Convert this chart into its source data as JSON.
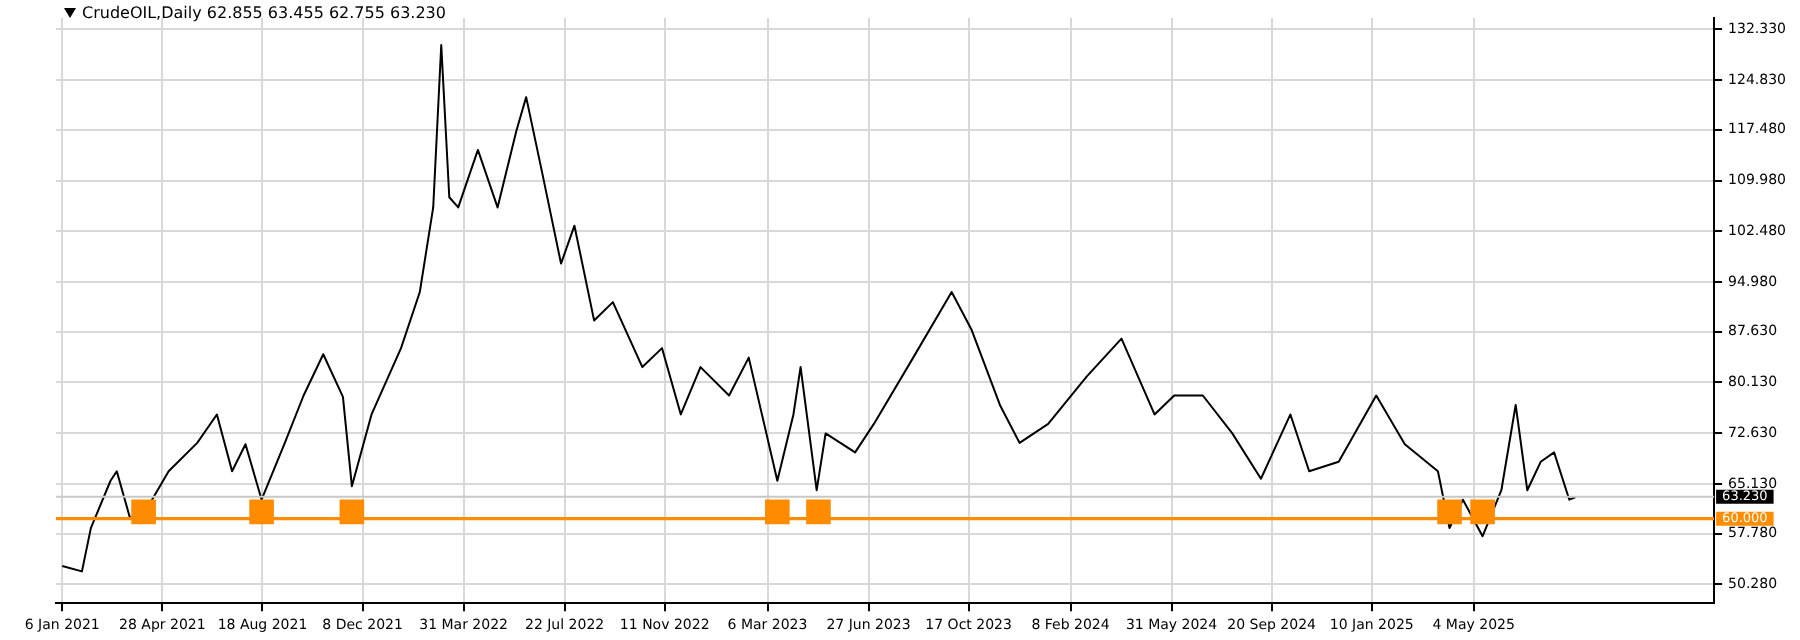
{
  "chart_data": {
    "type": "line",
    "title": "CrudeOIL,Daily  62.855 63.455 62.755 63.230",
    "xlim": [
      "2020-12-30",
      "2026-01-28"
    ],
    "xticks": [
      {
        "value": "2021-01-06",
        "label": "6 Jan 2021"
      },
      {
        "value": "2021-04-28",
        "label": "28 Apr 2021"
      },
      {
        "value": "2021-08-18",
        "label": "18 Aug 2021"
      },
      {
        "value": "2021-12-08",
        "label": "8 Dec 2021"
      },
      {
        "value": "2022-03-31",
        "label": "31 Mar 2022"
      },
      {
        "value": "2022-07-22",
        "label": "22 Jul 2022"
      },
      {
        "value": "2022-11-11",
        "label": "11 Nov 2022"
      },
      {
        "value": "2023-03-06",
        "label": "6 Mar 2023"
      },
      {
        "value": "2023-06-27",
        "label": "27 Jun 2023"
      },
      {
        "value": "2023-10-17",
        "label": "17 Oct 2023"
      },
      {
        "value": "2024-02-08",
        "label": "8 Feb 2024"
      },
      {
        "value": "2024-05-31",
        "label": "31 May 2024"
      },
      {
        "value": "2024-09-20",
        "label": "20 Sep 2024"
      },
      {
        "value": "2025-01-10",
        "label": "10 Jan 2025"
      },
      {
        "value": "2025-05-04",
        "label": "4 May 2025"
      }
    ],
    "ylim": [
      47.5,
      134
    ],
    "yticks": [
      {
        "value": 50.28,
        "label": "50.280"
      },
      {
        "value": 57.78,
        "label": "57.780"
      },
      {
        "value": 65.13,
        "label": "65.130"
      },
      {
        "value": 72.63,
        "label": "72.630"
      },
      {
        "value": 80.13,
        "label": "80.130"
      },
      {
        "value": 87.63,
        "label": "87.630"
      },
      {
        "value": 94.98,
        "label": "94.980"
      },
      {
        "value": 102.48,
        "label": "102.480"
      },
      {
        "value": 109.98,
        "label": "109.980"
      },
      {
        "value": 117.48,
        "label": "117.480"
      },
      {
        "value": 124.83,
        "label": "124.830"
      },
      {
        "value": 132.33,
        "label": "132.330"
      }
    ],
    "grid": true,
    "legend": false,
    "series": [
      {
        "color": "#000000",
        "marker": "none",
        "x": [
          "2021-01-06",
          "2021-01-28",
          "2021-02-07",
          "2021-03-01",
          "2021-03-08",
          "2021-03-23",
          "2021-04-13",
          "2021-05-05",
          "2021-06-06",
          "2021-06-28",
          "2021-07-15",
          "2021-07-30",
          "2021-08-17",
          "2021-09-12",
          "2021-10-03",
          "2021-10-25",
          "2021-11-16",
          "2021-11-26",
          "2021-12-18",
          "2022-01-20",
          "2022-02-10",
          "2022-02-25",
          "2022-03-06",
          "2022-03-15",
          "2022-03-25",
          "2022-04-16",
          "2022-05-08",
          "2022-05-29",
          "2022-06-09",
          "2022-06-26",
          "2022-07-18",
          "2022-08-02",
          "2022-08-24",
          "2022-09-14",
          "2022-10-17",
          "2022-11-08",
          "2022-11-29",
          "2022-12-21",
          "2023-01-22",
          "2023-02-13",
          "2023-03-17",
          "2023-04-04",
          "2023-04-12",
          "2023-04-30",
          "2023-05-10",
          "2023-06-12",
          "2023-07-03",
          "2023-08-16",
          "2023-09-28",
          "2023-10-20",
          "2023-11-21",
          "2023-12-13",
          "2024-01-14",
          "2024-02-26",
          "2024-04-05",
          "2024-05-12",
          "2024-06-03",
          "2024-07-05",
          "2024-08-07",
          "2024-09-08",
          "2024-10-11",
          "2024-11-01",
          "2024-12-04",
          "2025-01-15",
          "2025-02-16",
          "2025-03-25",
          "2025-04-07",
          "2025-04-22",
          "2025-05-14",
          "2025-06-04",
          "2025-06-20",
          "2025-07-03",
          "2025-07-18",
          "2025-08-02",
          "2025-08-19",
          "2025-08-26"
        ],
        "values": [
          53.0,
          52.2,
          58.6,
          65.6,
          67.0,
          60.0,
          62.0,
          67.0,
          71.2,
          75.4,
          67.0,
          71.0,
          62.8,
          71.2,
          78.2,
          84.3,
          78.0,
          64.8,
          75.4,
          85.2,
          93.5,
          106.0,
          130.0,
          107.5,
          106.0,
          114.5,
          106.0,
          117.3,
          122.3,
          111.7,
          97.7,
          103.3,
          89.3,
          92.0,
          82.4,
          85.2,
          75.4,
          82.4,
          78.2,
          83.8,
          65.6,
          75.4,
          82.4,
          64.2,
          72.6,
          69.8,
          74.0,
          83.8,
          93.5,
          88.0,
          76.8,
          71.2,
          74.0,
          81.0,
          86.6,
          75.4,
          78.2,
          78.2,
          72.6,
          65.9,
          75.4,
          67.0,
          68.4,
          78.2,
          71.0,
          67.0,
          58.6,
          62.8,
          57.4,
          64.2,
          76.8,
          64.2,
          68.4,
          69.8,
          62.8,
          63.2
        ]
      },
      {
        "type": "scatter",
        "color": "#ff8c00",
        "marker": "square",
        "x": [
          "2021-04-07",
          "2021-08-17",
          "2021-11-26",
          "2023-03-17",
          "2023-05-02",
          "2025-04-07",
          "2025-05-14"
        ],
        "values": [
          61,
          61,
          61,
          61,
          61,
          61,
          61
        ]
      }
    ],
    "ref_lines": [
      {
        "axis": "y",
        "value": 63.23,
        "label": "63.230",
        "color": "#c8c8c8"
      },
      {
        "axis": "y",
        "value": 60,
        "label": "60.000",
        "color": "#ff8c00"
      }
    ]
  }
}
